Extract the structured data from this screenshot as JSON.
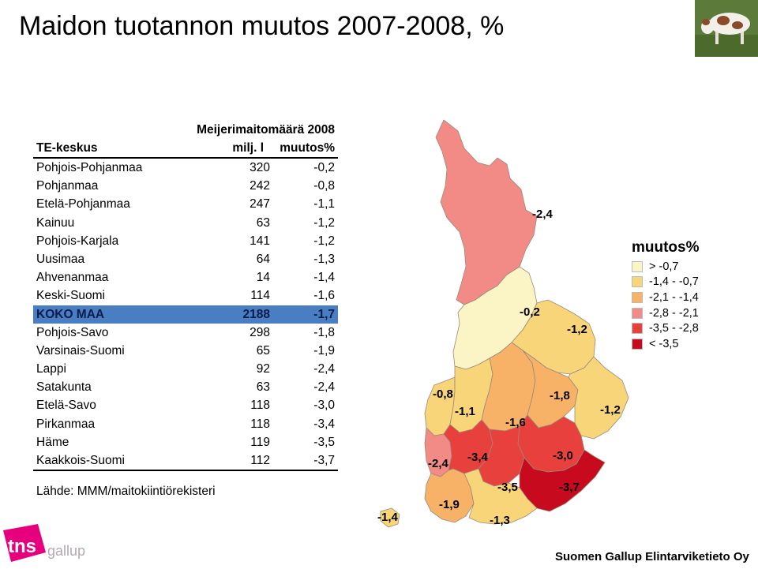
{
  "title": "Maidon tuotannon muutos 2007-2008, %",
  "table": {
    "header_group": "Meijerimaitomäärä 2008",
    "col_region": "TE-keskus",
    "col_volume": "milj. l",
    "col_change": "muutos%",
    "rows": [
      {
        "name": "Pohjois-Pohjanmaa",
        "volume": "320",
        "change": "-0,2"
      },
      {
        "name": "Pohjanmaa",
        "volume": "242",
        "change": "-0,8"
      },
      {
        "name": "Etelä-Pohjanmaa",
        "volume": "247",
        "change": "-1,1"
      },
      {
        "name": "Kainuu",
        "volume": "63",
        "change": "-1,2"
      },
      {
        "name": "Pohjois-Karjala",
        "volume": "141",
        "change": "-1,2"
      },
      {
        "name": "Uusimaa",
        "volume": "64",
        "change": "-1,3"
      },
      {
        "name": "Ahvenanmaa",
        "volume": "14",
        "change": "-1,4"
      },
      {
        "name": "Keski-Suomi",
        "volume": "114",
        "change": "-1,6"
      },
      {
        "name": "KOKO MAA",
        "volume": "2188",
        "change": "-1,7",
        "highlight": true
      },
      {
        "name": "Pohjois-Savo",
        "volume": "298",
        "change": "-1,8"
      },
      {
        "name": "Varsinais-Suomi",
        "volume": "65",
        "change": "-1,9"
      },
      {
        "name": "Lappi",
        "volume": "92",
        "change": "-2,4"
      },
      {
        "name": "Satakunta",
        "volume": "63",
        "change": "-2,4"
      },
      {
        "name": "Etelä-Savo",
        "volume": "118",
        "change": "-3,0"
      },
      {
        "name": "Pirkanmaa",
        "volume": "118",
        "change": "-3,4"
      },
      {
        "name": "Häme",
        "volume": "119",
        "change": "-3,5"
      },
      {
        "name": "Kaakkois-Suomi",
        "volume": "112",
        "change": "-3,7"
      }
    ]
  },
  "source": "Lähde: MMM/maitokiintiörekisteri",
  "footer": "Suomen Gallup Elintarviketieto Oy",
  "logo": {
    "text": "tns gallup",
    "color": "#e6007e"
  },
  "map": {
    "labels": {
      "lappi": "-2,4",
      "pohjois_pohjanmaa": "-0,2",
      "kainuu": "-1,2",
      "pohjanmaa": "-0,8",
      "etela_pohjanmaa": "-1,1",
      "keski_suomi": "-1,6",
      "pohjois_savo": "-1,8",
      "pohjois_karjala": "-1,2",
      "satakunta": "-2,4",
      "pirkanmaa": "-3,4",
      "etela_savo": "-3,0",
      "hame": "-3,5",
      "kaakkois_suomi": "-3,7",
      "varsinais_suomi": "-1,9",
      "uusimaa": "-1,3",
      "ahvenanmaa": "-1,4"
    },
    "colors": {
      "c1": "#fbf4c4",
      "c2": "#f9d57a",
      "c3": "#f7b267",
      "c4": "#f28a86",
      "c5": "#e8413d",
      "c6": "#c80a1e"
    }
  },
  "legend": {
    "title": "muutos%",
    "items": [
      {
        "label": "> -0,7",
        "color": "#fbf4c4"
      },
      {
        "label": "-1,4 - -0,7",
        "color": "#f9d57a"
      },
      {
        "label": "-2,1 - -1,4",
        "color": "#f7b267"
      },
      {
        "label": "-2,8 - -2,1",
        "color": "#f28a86"
      },
      {
        "label": "-3,5 - -2,8",
        "color": "#e8413d"
      },
      {
        "label": "< -3,5",
        "color": "#c80a1e"
      }
    ]
  }
}
